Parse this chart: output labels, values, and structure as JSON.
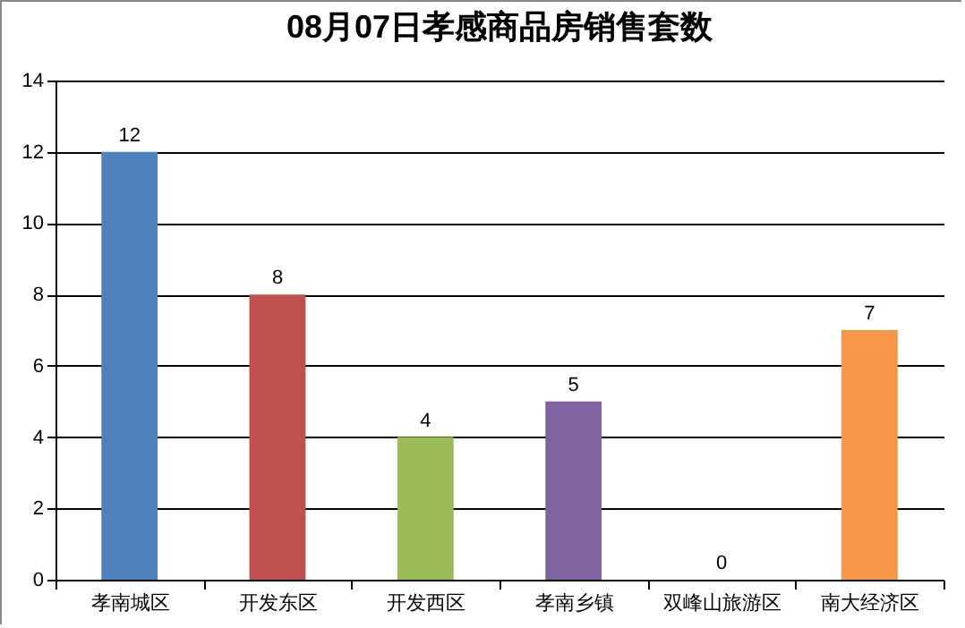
{
  "chart_data": {
    "type": "bar",
    "title": "08月07日孝感商品房销售套数",
    "categories": [
      "孝南城区",
      "开发东区",
      "开发西区",
      "孝南乡镇",
      "双峰山旅游区",
      "南大经济区"
    ],
    "values": [
      12,
      8,
      4,
      5,
      0,
      7
    ],
    "colors": [
      "#4f81bd",
      "#c0504d",
      "#9bbb59",
      "#8064a2",
      "#4bacc6",
      "#f79646"
    ],
    "ylim": [
      0,
      14
    ],
    "yticks": [
      0,
      2,
      4,
      6,
      8,
      10,
      12,
      14
    ],
    "grid": "y",
    "data_labels": true
  }
}
